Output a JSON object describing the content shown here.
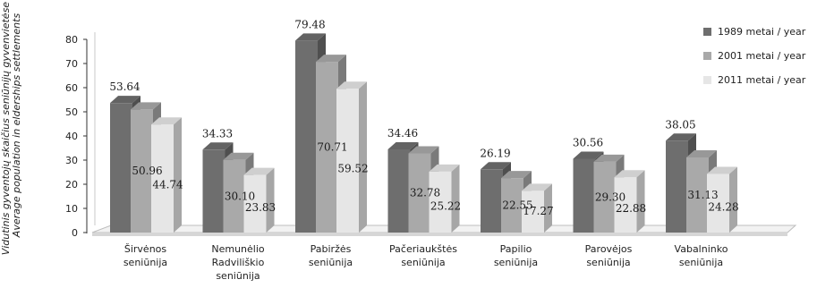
{
  "chart_data": {
    "type": "bar",
    "title": "",
    "ylabel": [
      "Vidutinis gyventojų skaičius seniūnijų gyvenvietėse /",
      "Average population in elderships settlements"
    ],
    "xlabel": "",
    "ylim": [
      0,
      80
    ],
    "yticks": [
      "0",
      "10",
      "20",
      "30",
      "40",
      "50",
      "60",
      "70",
      "80"
    ],
    "grid": false,
    "legend_position": "right",
    "categories": [
      [
        "Širvėnos",
        "seniūnija"
      ],
      [
        "Nemunėlio",
        "Radviliškio",
        "seniūnija"
      ],
      [
        "Pabiržės",
        "seniūnija"
      ],
      [
        "Pačeriaukštės",
        "seniūnija"
      ],
      [
        "Papilio",
        "seniūnija"
      ],
      [
        "Parovėjos",
        "seniūnija"
      ],
      [
        "Vabalninko",
        "seniūnija"
      ]
    ],
    "series": [
      {
        "name": "1989 metai / year",
        "color": "#6e6e6e",
        "values": [
          53.64,
          34.33,
          79.48,
          34.46,
          26.19,
          30.56,
          38.05
        ],
        "labels": [
          "53.64",
          "34.33",
          "79.48",
          "34.46",
          "26.19",
          "30.56",
          "38.05"
        ]
      },
      {
        "name": "2001 metai / year",
        "color": "#a9a9a9",
        "values": [
          50.96,
          30.1,
          70.71,
          32.78,
          22.55,
          29.3,
          31.13
        ],
        "labels": [
          "50.96",
          "30.10",
          "70.71",
          "32.78",
          "22.55",
          "29.30",
          "31.13"
        ]
      },
      {
        "name": "2011 metai / year",
        "color": "#e6e6e6",
        "values": [
          44.74,
          23.83,
          59.52,
          25.22,
          17.27,
          22.88,
          24.28
        ],
        "labels": [
          "44.74",
          "23.83",
          "59.52",
          "25.22",
          "17.27",
          "22.88",
          "24.28"
        ]
      }
    ]
  }
}
